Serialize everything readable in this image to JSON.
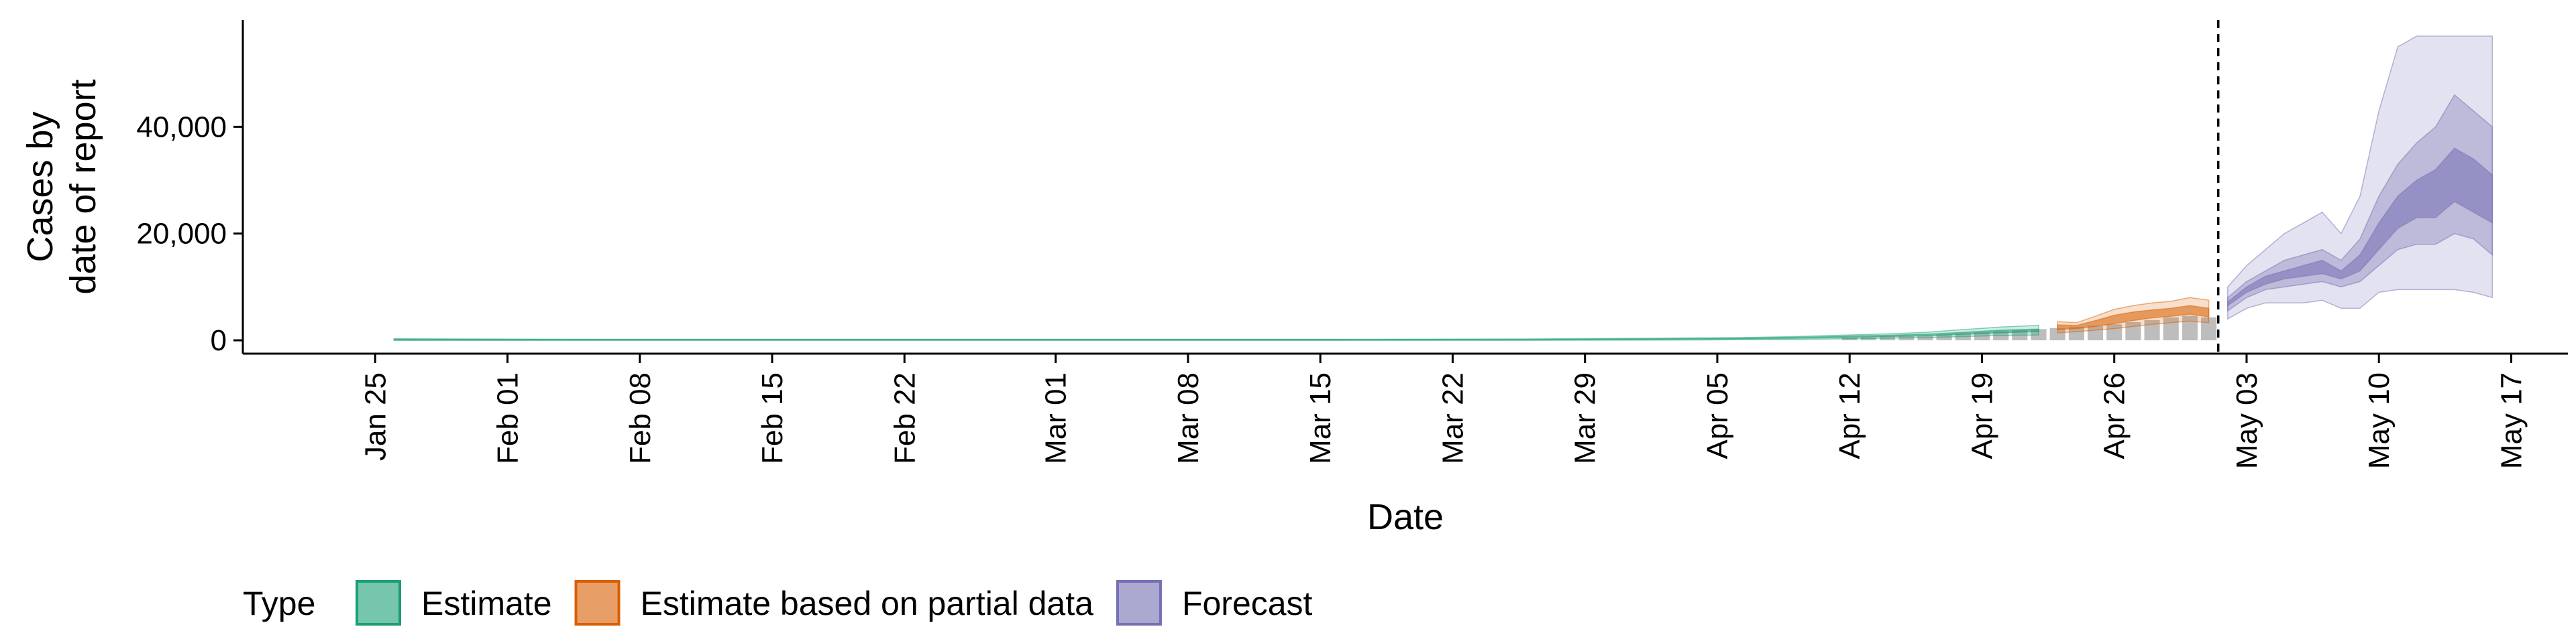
{
  "chart_data": {
    "type": "area",
    "xlabel": "Date",
    "ylabel_lines": [
      "Cases by",
      "date of report"
    ],
    "x_range": [
      "2020-01-18",
      "2020-05-20"
    ],
    "ylim": [
      -2500,
      60000
    ],
    "x_ticks": [
      {
        "date": "2020-01-25",
        "label": "Jan 25"
      },
      {
        "date": "2020-02-01",
        "label": "Feb 01"
      },
      {
        "date": "2020-02-08",
        "label": "Feb 08"
      },
      {
        "date": "2020-02-15",
        "label": "Feb 15"
      },
      {
        "date": "2020-02-22",
        "label": "Feb 22"
      },
      {
        "date": "2020-03-01",
        "label": "Mar 01"
      },
      {
        "date": "2020-03-08",
        "label": "Mar 08"
      },
      {
        "date": "2020-03-15",
        "label": "Mar 15"
      },
      {
        "date": "2020-03-22",
        "label": "Mar 22"
      },
      {
        "date": "2020-03-29",
        "label": "Mar 29"
      },
      {
        "date": "2020-04-05",
        "label": "Apr 05"
      },
      {
        "date": "2020-04-12",
        "label": "Apr 12"
      },
      {
        "date": "2020-04-19",
        "label": "Apr 19"
      },
      {
        "date": "2020-04-26",
        "label": "Apr 26"
      },
      {
        "date": "2020-05-03",
        "label": "May 03"
      },
      {
        "date": "2020-05-10",
        "label": "May 10"
      },
      {
        "date": "2020-05-17",
        "label": "May 17"
      }
    ],
    "y_ticks": [
      {
        "value": 0,
        "label": "0"
      },
      {
        "value": 20000,
        "label": "20,000"
      },
      {
        "value": 40000,
        "label": "40,000"
      }
    ],
    "forecast_date": "2020-05-01",
    "colors": {
      "Estimate": "#1b9e77",
      "Estimate based on partial data": "#d95f02",
      "Forecast": "#7570b3",
      "bars": "#bdbdbd"
    },
    "legend": {
      "title": "Type",
      "position": "bottom",
      "entries": [
        "Estimate",
        "Estimate based on partial data",
        "Forecast"
      ]
    },
    "bars": [
      {
        "date": "2020-04-12",
        "value": 500
      },
      {
        "date": "2020-04-13",
        "value": 600
      },
      {
        "date": "2020-04-14",
        "value": 700
      },
      {
        "date": "2020-04-15",
        "value": 800
      },
      {
        "date": "2020-04-16",
        "value": 900
      },
      {
        "date": "2020-04-17",
        "value": 1100
      },
      {
        "date": "2020-04-18",
        "value": 1300
      },
      {
        "date": "2020-04-19",
        "value": 1500
      },
      {
        "date": "2020-04-20",
        "value": 1700
      },
      {
        "date": "2020-04-21",
        "value": 1900
      },
      {
        "date": "2020-04-22",
        "value": 2100
      },
      {
        "date": "2020-04-23",
        "value": 2300
      },
      {
        "date": "2020-04-24",
        "value": 2500
      },
      {
        "date": "2020-04-25",
        "value": 2700
      },
      {
        "date": "2020-04-26",
        "value": 3000
      },
      {
        "date": "2020-04-27",
        "value": 3400
      },
      {
        "date": "2020-04-28",
        "value": 3800
      },
      {
        "date": "2020-04-29",
        "value": 4300
      },
      {
        "date": "2020-04-30",
        "value": 4600
      },
      {
        "date": "2020-05-01",
        "value": 4300
      }
    ],
    "series": [
      {
        "name": "Estimate",
        "dates": [
          "2020-01-26",
          "2020-02-05",
          "2020-02-15",
          "2020-02-25",
          "2020-03-06",
          "2020-03-16",
          "2020-03-26",
          "2020-04-02",
          "2020-04-06",
          "2020-04-09",
          "2020-04-12",
          "2020-04-14",
          "2020-04-16",
          "2020-04-18",
          "2020-04-20",
          "2020-04-22"
        ],
        "outer_lower": [
          0,
          0,
          0,
          0,
          0,
          0,
          0,
          50,
          100,
          150,
          300,
          400,
          500,
          700,
          900,
          1000
        ],
        "outer_upper": [
          300,
          200,
          200,
          200,
          200,
          200,
          250,
          400,
          500,
          700,
          1000,
          1200,
          1500,
          2000,
          2500,
          2800
        ],
        "inner_lower": [
          50,
          50,
          50,
          50,
          50,
          50,
          80,
          150,
          250,
          350,
          550,
          700,
          850,
          1100,
          1400,
          1600
        ],
        "inner_upper": [
          200,
          150,
          150,
          150,
          150,
          150,
          180,
          300,
          400,
          550,
          800,
          950,
          1150,
          1500,
          1900,
          2100
        ]
      },
      {
        "name": "Estimate based on partial data",
        "dates": [
          "2020-04-23",
          "2020-04-24",
          "2020-04-25",
          "2020-04-26",
          "2020-04-27",
          "2020-04-28",
          "2020-04-29",
          "2020-04-30",
          "2020-05-01"
        ],
        "outer_lower": [
          1400,
          1600,
          1900,
          2200,
          2600,
          3000,
          3300,
          3600,
          3300
        ],
        "outer_upper": [
          3500,
          3300,
          4500,
          5800,
          6500,
          7000,
          7300,
          8000,
          7500
        ],
        "inner_lower": [
          2000,
          2200,
          2600,
          3100,
          3700,
          4200,
          4500,
          4900,
          4400
        ],
        "inner_upper": [
          2900,
          2800,
          3700,
          4700,
          5300,
          5700,
          6000,
          6500,
          6000
        ]
      },
      {
        "name": "Forecast",
        "dates": [
          "2020-05-02",
          "2020-05-03",
          "2020-05-04",
          "2020-05-05",
          "2020-05-06",
          "2020-05-07",
          "2020-05-08",
          "2020-05-09",
          "2020-05-10",
          "2020-05-11",
          "2020-05-12",
          "2020-05-13",
          "2020-05-14",
          "2020-05-15",
          "2020-05-16"
        ],
        "outer_lower": [
          4000,
          6000,
          7000,
          7000,
          7000,
          7500,
          6000,
          6000,
          9000,
          9500,
          9500,
          9500,
          9500,
          9000,
          8000
        ],
        "outer_upper": [
          10000,
          14000,
          17000,
          20000,
          22000,
          24000,
          20000,
          27000,
          43000,
          55000,
          57000,
          57000,
          57000,
          57000,
          57000
        ],
        "mid_lower": [
          5500,
          8000,
          9500,
          10000,
          10500,
          11000,
          10000,
          11000,
          14000,
          17000,
          18000,
          18000,
          20000,
          19000,
          16000
        ],
        "mid_upper": [
          8000,
          11000,
          13000,
          15000,
          16000,
          17000,
          15000,
          19000,
          27000,
          33000,
          37000,
          40000,
          46000,
          43000,
          40000
        ],
        "inner_lower": [
          6500,
          9000,
          10500,
          11500,
          12000,
          12500,
          11500,
          13000,
          17000,
          21000,
          23000,
          23000,
          26000,
          24000,
          22000
        ],
        "inner_upper": [
          7200,
          10000,
          12000,
          13000,
          14000,
          15000,
          13000,
          16000,
          22000,
          27000,
          30000,
          32000,
          36000,
          34000,
          31000
        ]
      }
    ]
  }
}
